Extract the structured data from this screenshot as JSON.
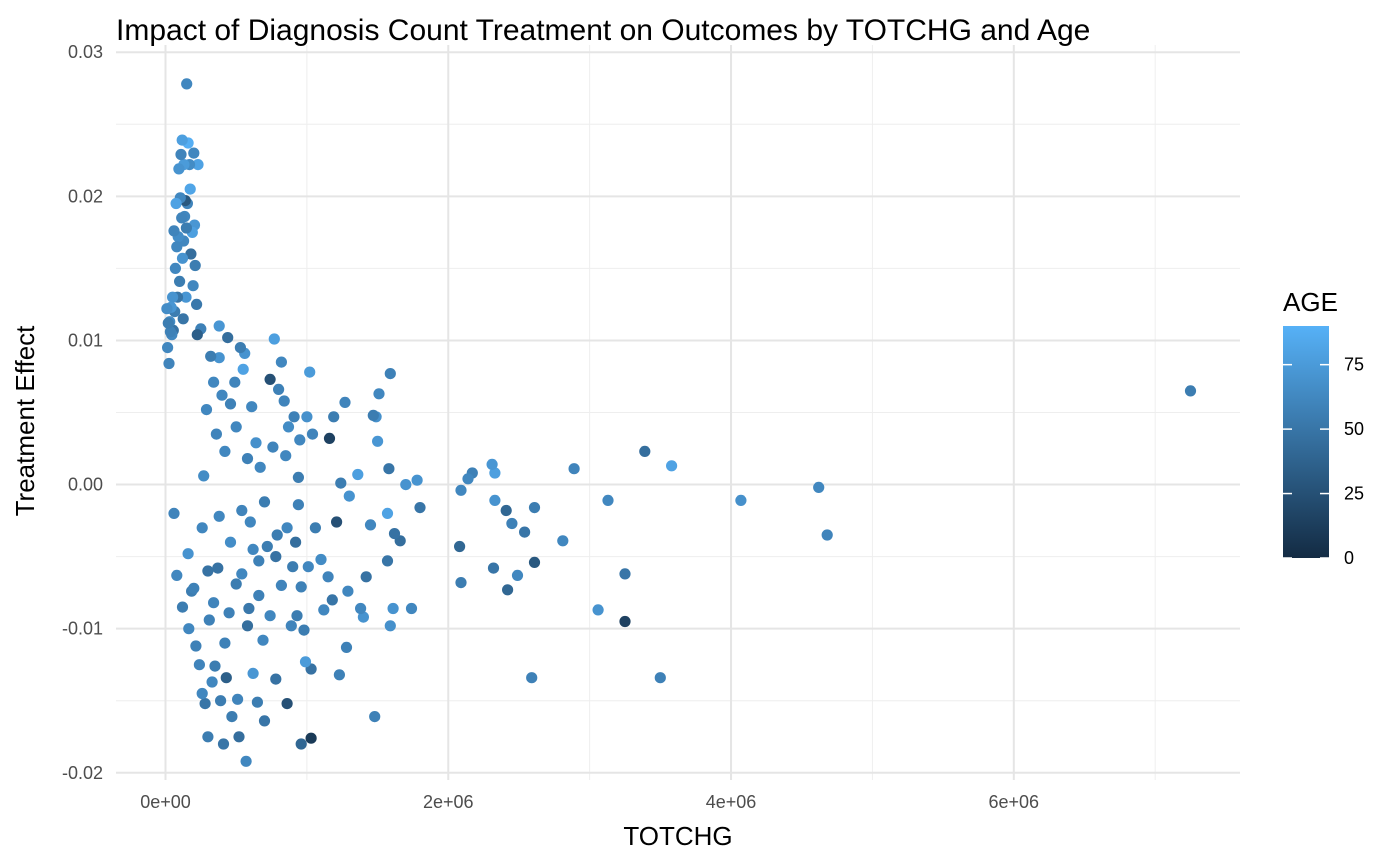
{
  "chart_data": {
    "type": "scatter",
    "title": "Impact of Diagnosis Count Treatment on Outcomes by TOTCHG and Age",
    "xlabel": "TOTCHG",
    "ylabel": "Treatment Effect",
    "xlim": [
      -350000,
      7600000
    ],
    "ylim": [
      -0.0205,
      0.0305
    ],
    "x_ticks": [
      0,
      2000000,
      4000000,
      6000000
    ],
    "x_tick_labels": [
      "0e+00",
      "2e+06",
      "4e+06",
      "6e+06"
    ],
    "y_ticks": [
      -0.02,
      -0.01,
      0.0,
      0.01,
      0.02,
      0.03
    ],
    "y_tick_labels": [
      "-0.02",
      "-0.01",
      "0.00",
      "0.01",
      "0.02",
      "0.03"
    ],
    "grid": true,
    "legend": {
      "title": "AGE",
      "position": "right",
      "type": "colorbar",
      "range": [
        0,
        90
      ],
      "ticks": [
        0,
        25,
        50,
        75
      ],
      "tick_labels": [
        "0",
        "25",
        "50",
        "75"
      ],
      "color_low": "#132b43",
      "color_high": "#56b1f7"
    },
    "points": [
      [
        7250000,
        0.0065,
        55
      ],
      [
        4620000,
        -0.0002,
        62
      ],
      [
        4680000,
        -0.0035,
        60
      ],
      [
        4070000,
        -0.0011,
        68
      ],
      [
        3580000,
        0.0013,
        80
      ],
      [
        3390000,
        0.0023,
        45
      ],
      [
        3500000,
        -0.0134,
        58
      ],
      [
        3250000,
        -0.0095,
        15
      ],
      [
        3250000,
        -0.0062,
        50
      ],
      [
        3130000,
        -0.0011,
        62
      ],
      [
        3060000,
        -0.0087,
        70
      ],
      [
        2890000,
        0.0011,
        60
      ],
      [
        2810000,
        -0.0039,
        62
      ],
      [
        2610000,
        -0.0016,
        55
      ],
      [
        2610000,
        -0.0054,
        30
      ],
      [
        2590000,
        -0.0134,
        58
      ],
      [
        2540000,
        -0.0033,
        50
      ],
      [
        2490000,
        -0.0063,
        62
      ],
      [
        2450000,
        -0.0027,
        58
      ],
      [
        2410000,
        -0.0018,
        40
      ],
      [
        2420000,
        -0.0073,
        40
      ],
      [
        2330000,
        0.0008,
        78
      ],
      [
        2310000,
        0.0014,
        72
      ],
      [
        2330000,
        -0.0011,
        70
      ],
      [
        2320000,
        -0.0058,
        50
      ],
      [
        2170000,
        0.0008,
        58
      ],
      [
        2140000,
        0.0004,
        62
      ],
      [
        2090000,
        -0.0004,
        62
      ],
      [
        2090000,
        -0.0068,
        55
      ],
      [
        2080000,
        -0.0043,
        40
      ],
      [
        1800000,
        -0.0016,
        50
      ],
      [
        1780000,
        0.0003,
        70
      ],
      [
        1740000,
        -0.0086,
        62
      ],
      [
        1700000,
        0.0,
        70
      ],
      [
        1660000,
        -0.0039,
        45
      ],
      [
        1620000,
        -0.0034,
        48
      ],
      [
        1590000,
        0.0077,
        58
      ],
      [
        1580000,
        0.0011,
        50
      ],
      [
        1570000,
        -0.002,
        80
      ],
      [
        1570000,
        -0.0053,
        50
      ],
      [
        1590000,
        -0.0098,
        68
      ],
      [
        1610000,
        -0.0086,
        70
      ],
      [
        1510000,
        0.0063,
        62
      ],
      [
        1500000,
        0.003,
        72
      ],
      [
        1490000,
        0.0047,
        68
      ],
      [
        1470000,
        0.0048,
        55
      ],
      [
        1450000,
        -0.0028,
        62
      ],
      [
        1480000,
        -0.0161,
        58
      ],
      [
        1420000,
        -0.0064,
        48
      ],
      [
        1400000,
        -0.0092,
        70
      ],
      [
        1380000,
        -0.0086,
        62
      ],
      [
        1360000,
        0.0007,
        78
      ],
      [
        1300000,
        -0.0008,
        70
      ],
      [
        1290000,
        -0.0074,
        62
      ],
      [
        1280000,
        -0.0113,
        58
      ],
      [
        1270000,
        0.0057,
        60
      ],
      [
        1240000,
        0.0001,
        55
      ],
      [
        1230000,
        -0.0132,
        58
      ],
      [
        1210000,
        -0.0026,
        25
      ],
      [
        1190000,
        0.0047,
        55
      ],
      [
        1180000,
        -0.008,
        50
      ],
      [
        1160000,
        0.0032,
        15
      ],
      [
        1150000,
        -0.0064,
        60
      ],
      [
        1120000,
        -0.0087,
        62
      ],
      [
        1100000,
        -0.0052,
        65
      ],
      [
        1060000,
        -0.003,
        55
      ],
      [
        1040000,
        0.0035,
        60
      ],
      [
        1030000,
        -0.0176,
        10
      ],
      [
        1030000,
        -0.0128,
        48
      ],
      [
        1020000,
        0.0078,
        75
      ],
      [
        1010000,
        -0.0057,
        62
      ],
      [
        1000000,
        0.0047,
        68
      ],
      [
        990000,
        -0.0123,
        75
      ],
      [
        980000,
        -0.0101,
        55
      ],
      [
        960000,
        -0.018,
        40
      ],
      [
        960000,
        -0.0071,
        58
      ],
      [
        950000,
        0.0031,
        62
      ],
      [
        940000,
        0.0005,
        55
      ],
      [
        930000,
        -0.0091,
        55
      ],
      [
        920000,
        -0.004,
        45
      ],
      [
        910000,
        0.0047,
        58
      ],
      [
        890000,
        -0.0098,
        60
      ],
      [
        870000,
        0.004,
        65
      ],
      [
        860000,
        -0.0152,
        25
      ],
      [
        850000,
        0.002,
        62
      ],
      [
        840000,
        0.0058,
        60
      ],
      [
        820000,
        0.0085,
        62
      ],
      [
        800000,
        0.0066,
        58
      ],
      [
        790000,
        -0.0035,
        55
      ],
      [
        780000,
        -0.0135,
        48
      ],
      [
        770000,
        0.0101,
        78
      ],
      [
        760000,
        0.0026,
        60
      ],
      [
        740000,
        0.0073,
        25
      ],
      [
        720000,
        -0.0043,
        55
      ],
      [
        700000,
        -0.0164,
        50
      ],
      [
        690000,
        -0.0108,
        62
      ],
      [
        670000,
        0.0012,
        62
      ],
      [
        660000,
        -0.0053,
        58
      ],
      [
        650000,
        -0.0151,
        55
      ],
      [
        640000,
        0.0029,
        68
      ],
      [
        620000,
        -0.0131,
        72
      ],
      [
        610000,
        0.0054,
        62
      ],
      [
        600000,
        -0.0026,
        62
      ],
      [
        590000,
        -0.0086,
        52
      ],
      [
        580000,
        0.0018,
        58
      ],
      [
        570000,
        -0.0192,
        62
      ],
      [
        560000,
        0.0091,
        70
      ],
      [
        550000,
        0.008,
        80
      ],
      [
        540000,
        -0.0062,
        62
      ],
      [
        530000,
        0.0095,
        55
      ],
      [
        520000,
        -0.0175,
        45
      ],
      [
        510000,
        -0.0149,
        60
      ],
      [
        500000,
        0.004,
        62
      ],
      [
        490000,
        0.0071,
        60
      ],
      [
        470000,
        -0.0161,
        55
      ],
      [
        460000,
        0.0056,
        58
      ],
      [
        450000,
        -0.0089,
        58
      ],
      [
        440000,
        0.0102,
        45
      ],
      [
        430000,
        -0.0134,
        35
      ],
      [
        420000,
        0.0023,
        62
      ],
      [
        410000,
        -0.018,
        50
      ],
      [
        400000,
        0.0062,
        62
      ],
      [
        390000,
        -0.015,
        55
      ],
      [
        380000,
        0.0088,
        70
      ],
      [
        380000,
        0.011,
        72
      ],
      [
        370000,
        -0.0058,
        48
      ],
      [
        360000,
        0.0035,
        60
      ],
      [
        350000,
        -0.0126,
        55
      ],
      [
        340000,
        0.0071,
        62
      ],
      [
        330000,
        -0.0137,
        62
      ],
      [
        320000,
        0.0089,
        55
      ],
      [
        310000,
        -0.0094,
        58
      ],
      [
        300000,
        -0.0175,
        55
      ],
      [
        290000,
        0.0052,
        62
      ],
      [
        280000,
        -0.0152,
        50
      ],
      [
        270000,
        0.0006,
        65
      ],
      [
        260000,
        -0.0145,
        62
      ],
      [
        250000,
        0.0108,
        58
      ],
      [
        240000,
        -0.0125,
        60
      ],
      [
        230000,
        0.0222,
        80
      ],
      [
        225000,
        0.0104,
        35
      ],
      [
        220000,
        0.0125,
        52
      ],
      [
        215000,
        -0.0112,
        58
      ],
      [
        210000,
        0.0152,
        55
      ],
      [
        205000,
        0.018,
        72
      ],
      [
        200000,
        0.023,
        62
      ],
      [
        195000,
        0.0138,
        62
      ],
      [
        190000,
        0.0175,
        78
      ],
      [
        185000,
        -0.0074,
        55
      ],
      [
        180000,
        0.016,
        45
      ],
      [
        175000,
        0.0205,
        82
      ],
      [
        170000,
        0.0222,
        65
      ],
      [
        165000,
        -0.01,
        62
      ],
      [
        160000,
        0.0237,
        88
      ],
      [
        155000,
        0.0195,
        60
      ],
      [
        150000,
        0.0278,
        62
      ],
      [
        148000,
        0.0178,
        55
      ],
      [
        145000,
        0.013,
        72
      ],
      [
        140000,
        0.0197,
        30
      ],
      [
        135000,
        0.0186,
        62
      ],
      [
        130000,
        0.0222,
        75
      ],
      [
        128000,
        0.0169,
        62
      ],
      [
        125000,
        0.0115,
        50
      ],
      [
        120000,
        0.0157,
        70
      ],
      [
        118000,
        0.0239,
        78
      ],
      [
        115000,
        0.0185,
        60
      ],
      [
        110000,
        0.0229,
        60
      ],
      [
        105000,
        0.0199,
        62
      ],
      [
        100000,
        0.0141,
        55
      ],
      [
        95000,
        0.0219,
        70
      ],
      [
        90000,
        0.0172,
        66
      ],
      [
        85000,
        0.013,
        50
      ],
      [
        80000,
        0.0165,
        62
      ],
      [
        75000,
        0.0195,
        80
      ],
      [
        70000,
        0.015,
        62
      ],
      [
        65000,
        0.012,
        55
      ],
      [
        60000,
        0.0176,
        60
      ],
      [
        55000,
        0.0107,
        48
      ],
      [
        50000,
        0.013,
        70
      ],
      [
        45000,
        0.0104,
        62
      ],
      [
        40000,
        0.0123,
        72
      ],
      [
        35000,
        0.0106,
        58
      ],
      [
        30000,
        0.0113,
        65
      ],
      [
        25000,
        0.0084,
        60
      ],
      [
        20000,
        0.0112,
        55
      ],
      [
        15000,
        0.0095,
        62
      ],
      [
        10000,
        0.0122,
        66
      ],
      [
        60000,
        -0.002,
        60
      ],
      [
        80000,
        -0.0063,
        62
      ],
      [
        120000,
        -0.0085,
        55
      ],
      [
        160000,
        -0.0048,
        70
      ],
      [
        200000,
        -0.0072,
        58
      ],
      [
        260000,
        -0.003,
        62
      ],
      [
        300000,
        -0.006,
        48
      ],
      [
        340000,
        -0.0082,
        60
      ],
      [
        380000,
        -0.0022,
        62
      ],
      [
        420000,
        -0.011,
        58
      ],
      [
        460000,
        -0.004,
        66
      ],
      [
        500000,
        -0.0069,
        55
      ],
      [
        540000,
        -0.0018,
        60
      ],
      [
        580000,
        -0.0098,
        45
      ],
      [
        620000,
        -0.0045,
        62
      ],
      [
        660000,
        -0.0077,
        58
      ],
      [
        700000,
        -0.0012,
        55
      ],
      [
        740000,
        -0.0091,
        62
      ],
      [
        780000,
        -0.005,
        48
      ],
      [
        820000,
        -0.007,
        60
      ],
      [
        860000,
        -0.003,
        62
      ],
      [
        900000,
        -0.0057,
        55
      ],
      [
        940000,
        -0.0014,
        58
      ]
    ]
  }
}
